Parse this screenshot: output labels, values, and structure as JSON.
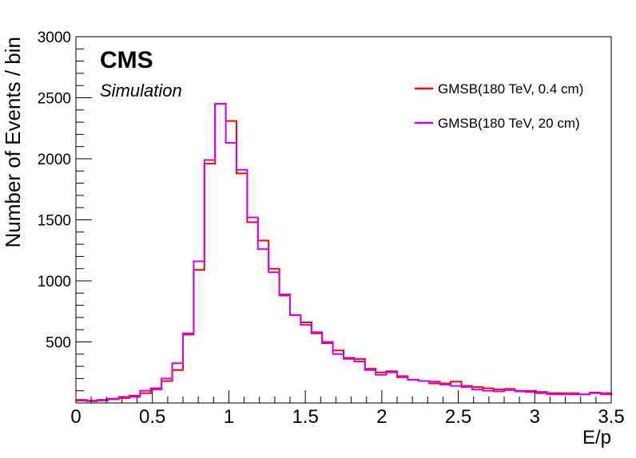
{
  "chart_data": {
    "type": "line",
    "style": "step-histogram",
    "xlabel": "E/p",
    "ylabel": "Number of Events / bin",
    "xlim": [
      0,
      3.5
    ],
    "ylim": [
      0,
      3000
    ],
    "bin_width": 0.07,
    "x_ticks": [
      "0",
      "0.5",
      "1",
      "1.5",
      "2",
      "2.5",
      "3",
      "3.5"
    ],
    "y_ticks": [
      "500",
      "1000",
      "1500",
      "2000",
      "2500",
      "3000"
    ],
    "grid": false,
    "legend_position": "top-right",
    "series": [
      {
        "name": "GMSB(180 TeV, 0.4 cm)",
        "color": "#ff0000",
        "values": [
          20,
          15,
          25,
          30,
          40,
          60,
          80,
          120,
          180,
          270,
          560,
          1090,
          1960,
          2450,
          2310,
          1880,
          1480,
          1330,
          1100,
          880,
          720,
          660,
          570,
          490,
          430,
          370,
          360,
          280,
          250,
          260,
          220,
          190,
          180,
          160,
          160,
          175,
          140,
          130,
          120,
          110,
          115,
          100,
          90,
          90,
          80,
          80,
          70,
          70,
          85,
          80,
          65
        ]
      },
      {
        "name": "GMSB(180 TeV,  20 cm)",
        "color": "#cc00ff",
        "values": [
          25,
          20,
          20,
          35,
          50,
          50,
          100,
          110,
          200,
          325,
          570,
          1160,
          1990,
          2450,
          2130,
          1910,
          1520,
          1260,
          1070,
          890,
          720,
          640,
          580,
          500,
          400,
          360,
          340,
          270,
          230,
          250,
          210,
          190,
          180,
          175,
          150,
          140,
          130,
          110,
          100,
          95,
          105,
          95,
          100,
          80,
          70,
          70,
          80,
          70,
          80,
          70,
          60
        ]
      }
    ]
  },
  "annotations": {
    "experiment": "CMS",
    "subtitle": "Simulation"
  }
}
